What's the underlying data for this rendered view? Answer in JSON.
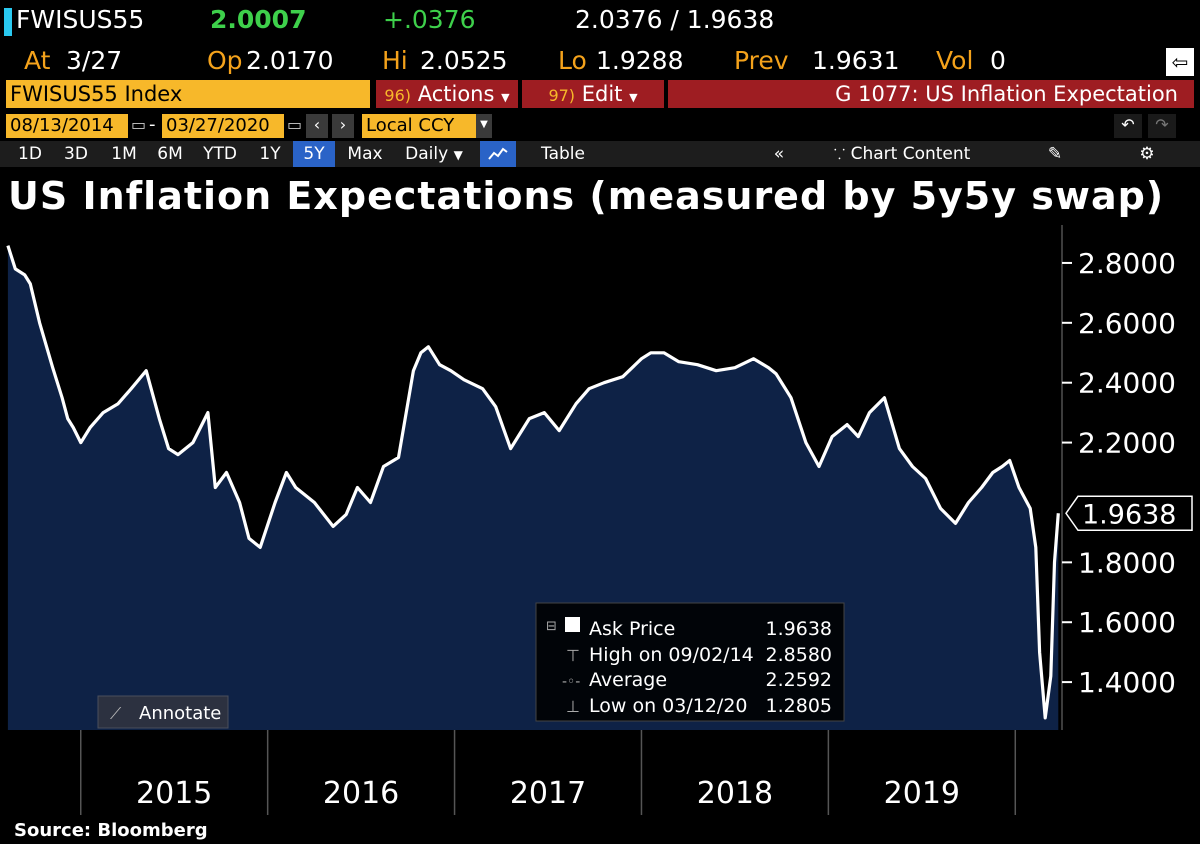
{
  "header": {
    "ticker": "FWISUS55",
    "last": "2.0007",
    "change": "+.0376",
    "bid_ask": "2.0376 / 1.9638",
    "at_label": "At",
    "at_value": "3/27",
    "op_label": "Op",
    "op_value": "2.0170",
    "hi_label": "Hi",
    "hi_value": "2.0525",
    "lo_label": "Lo",
    "lo_value": "1.9288",
    "prev_label": "Prev",
    "prev_value": "1.9631",
    "vol_label": "Vol",
    "vol_value": "0"
  },
  "toolbar": {
    "security": "FWISUS55 Index",
    "actions_num": "96)",
    "actions_label": "Actions",
    "edit_num": "97)",
    "edit_label": "Edit",
    "title": "G 1077: US Inflation Expectation",
    "start_date": "08/13/2014",
    "end_date": "03/27/2020",
    "currency": "Local CCY"
  },
  "periods": [
    "1D",
    "3D",
    "1M",
    "6M",
    "YTD",
    "1Y",
    "5Y",
    "Max"
  ],
  "selected_period": "5Y",
  "frequency": "Daily",
  "table_label": "Table",
  "chart_content_label": "Chart Content",
  "annotate_label": "Annotate",
  "source": "Source:  Bloomberg",
  "colors": {
    "area_fill": "#0e2246",
    "line": "#ffffff",
    "amber": "#f4a21b",
    "green": "#3ed04b",
    "red_bar": "#9e1d22"
  },
  "chart_data": {
    "type": "area",
    "title": "US Inflation Expectations (measured by 5y5y swap)",
    "x_unit": "year",
    "xlim": [
      2014.6,
      2020.25
    ],
    "ylim": [
      1.24,
      2.9
    ],
    "y_ticks": [
      "2.8000",
      "2.6000",
      "2.4000",
      "2.2000",
      "1.8000",
      "1.6000",
      "1.4000"
    ],
    "y_tick_values": [
      2.8,
      2.6,
      2.4,
      2.2,
      1.8,
      1.6,
      1.4
    ],
    "x_labels": [
      "2015",
      "2016",
      "2017",
      "2018",
      "2019"
    ],
    "x_label_values": [
      2015.5,
      2016.5,
      2017.5,
      2018.5,
      2019.5
    ],
    "year_dividers": [
      2015,
      2016,
      2017,
      2018,
      2019,
      2020
    ],
    "last_value": "1.9638",
    "series": [
      {
        "name": "Ask Price",
        "x": [
          2014.61,
          2014.65,
          2014.7,
          2014.73,
          2014.78,
          2014.85,
          2014.9,
          2014.93,
          2014.96,
          2015.0,
          2015.05,
          2015.12,
          2015.2,
          2015.27,
          2015.35,
          2015.42,
          2015.47,
          2015.52,
          2015.6,
          2015.68,
          2015.72,
          2015.78,
          2015.85,
          2015.9,
          2015.96,
          2016.04,
          2016.1,
          2016.15,
          2016.25,
          2016.35,
          2016.42,
          2016.48,
          2016.55,
          2016.62,
          2016.7,
          2016.78,
          2016.82,
          2016.86,
          2016.92,
          2016.98,
          2017.05,
          2017.15,
          2017.22,
          2017.3,
          2017.4,
          2017.48,
          2017.56,
          2017.65,
          2017.72,
          2017.8,
          2017.9,
          2018.0,
          2018.05,
          2018.12,
          2018.2,
          2018.3,
          2018.4,
          2018.5,
          2018.6,
          2018.68,
          2018.72,
          2018.8,
          2018.88,
          2018.95,
          2019.02,
          2019.1,
          2019.16,
          2019.22,
          2019.3,
          2019.38,
          2019.45,
          2019.52,
          2019.6,
          2019.68,
          2019.75,
          2019.82,
          2019.88,
          2019.93,
          2019.97,
          2020.02,
          2020.08,
          2020.11,
          2020.13,
          2020.16,
          2020.19,
          2020.21,
          2020.23
        ],
        "y": [
          2.858,
          2.78,
          2.76,
          2.73,
          2.6,
          2.45,
          2.35,
          2.28,
          2.25,
          2.2,
          2.25,
          2.3,
          2.33,
          2.38,
          2.44,
          2.28,
          2.18,
          2.16,
          2.2,
          2.3,
          2.05,
          2.1,
          2.0,
          1.88,
          1.85,
          2.0,
          2.1,
          2.05,
          2.0,
          1.92,
          1.96,
          2.05,
          2.0,
          2.12,
          2.15,
          2.44,
          2.5,
          2.52,
          2.46,
          2.44,
          2.41,
          2.38,
          2.32,
          2.18,
          2.28,
          2.3,
          2.24,
          2.33,
          2.38,
          2.4,
          2.42,
          2.48,
          2.5,
          2.5,
          2.47,
          2.46,
          2.44,
          2.45,
          2.48,
          2.45,
          2.43,
          2.35,
          2.2,
          2.12,
          2.22,
          2.26,
          2.22,
          2.3,
          2.35,
          2.18,
          2.12,
          2.08,
          1.98,
          1.93,
          2.0,
          2.05,
          2.1,
          2.12,
          2.14,
          2.05,
          1.98,
          1.85,
          1.5,
          1.2805,
          1.42,
          1.8,
          1.9638
        ]
      }
    ],
    "legend": {
      "ask_label": "Ask Price",
      "ask_value": "1.9638",
      "high_label": "High on 09/02/14",
      "high_value": "2.8580",
      "avg_label": "Average",
      "avg_value": "2.2592",
      "low_label": "Low on 03/12/20",
      "low_value": "1.2805"
    }
  }
}
